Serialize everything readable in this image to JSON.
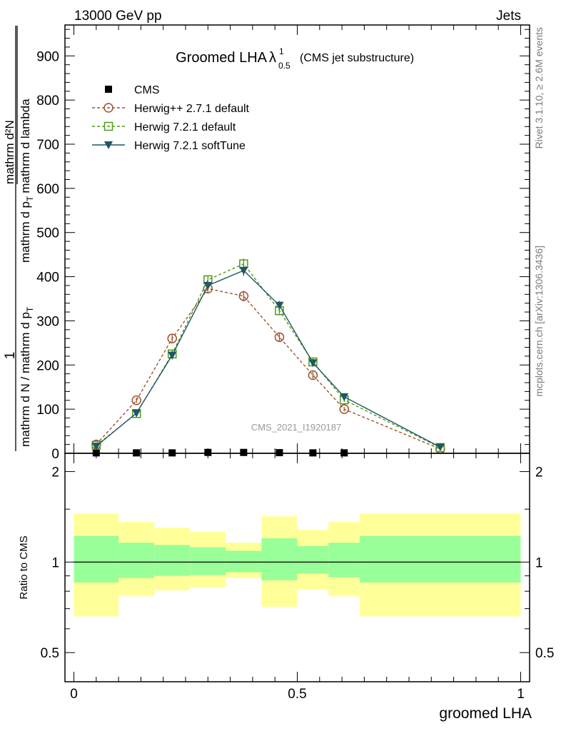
{
  "header": {
    "left": "13000 GeV pp",
    "right": "Jets",
    "title_main": "Groomed LHA",
    "title_lambda": "λ",
    "title_sup": "1",
    "title_sub": "0.5",
    "title_note": "(CMS jet substructure)",
    "watermark": "CMS_2021_I1920187",
    "side_rivet": "Rivet 3.1.10, ≥ 2.6M events",
    "side_mcplots": "mcplots.cern.ch [arXiv:1306.3436]"
  },
  "colors": {
    "herwigpp": "#a0522d",
    "herwig721": "#4f9a1a",
    "softtune": "#1f5668",
    "band_outer": "#ffff99",
    "band_inner": "#99ff99"
  },
  "chart_data": [
    {
      "type": "line",
      "name": "main",
      "ylabel": {
        "num": "1",
        "den": "mathrm d N / mathrm d p_T",
        "den_main": "mathrm d N / mathrm d p",
        "den_sub": "T",
        "rhs_num": "mathrm d²N",
        "rhs_den_pre": "mathrm d p",
        "rhs_den_sub": "T",
        "rhs_den_post": "mathrm d lambda"
      },
      "xlim": [
        -0.02,
        1.02
      ],
      "ylim": [
        0,
        970
      ],
      "yticks": [
        0,
        100,
        200,
        300,
        400,
        500,
        600,
        700,
        800,
        900
      ],
      "legend_position": "top-left",
      "series": [
        {
          "name": "CMS",
          "x": [
            0.05,
            0.14,
            0.22,
            0.3,
            0.38,
            0.46,
            0.535,
            0.605
          ],
          "y": [
            1,
            1,
            1,
            2,
            2,
            1.5,
            1,
            1
          ]
        },
        {
          "name": "Herwig++ 2.7.1 default",
          "x": [
            0.05,
            0.14,
            0.22,
            0.3,
            0.38,
            0.46,
            0.535,
            0.605,
            0.82
          ],
          "y": [
            20,
            120,
            260,
            373,
            356,
            263,
            177,
            100,
            10
          ],
          "err": [
            3,
            6,
            8,
            10,
            12,
            10,
            8,
            5,
            2
          ]
        },
        {
          "name": "Herwig 7.2.1 default",
          "x": [
            0.05,
            0.14,
            0.22,
            0.3,
            0.38,
            0.46,
            0.535,
            0.605,
            0.82
          ],
          "y": [
            18,
            90,
            225,
            393,
            429,
            323,
            207,
            121,
            13
          ],
          "err": [
            3,
            6,
            9,
            10,
            12,
            10,
            8,
            5,
            2
          ]
        },
        {
          "name": "Herwig 7.2.1 softTune",
          "x": [
            0.05,
            0.14,
            0.22,
            0.3,
            0.38,
            0.46,
            0.535,
            0.605,
            0.82
          ],
          "y": [
            16,
            91,
            222,
            380,
            414,
            335,
            205,
            128,
            14
          ],
          "err": [
            3,
            6,
            9,
            10,
            12,
            10,
            8,
            5,
            2
          ]
        }
      ]
    },
    {
      "type": "area",
      "name": "ratio",
      "xlabel": "groomed LHA",
      "ylabel": "Ratio to CMS",
      "xlim": [
        -0.02,
        1.02
      ],
      "ylim": [
        0.4,
        2.3
      ],
      "log_y": true,
      "yticks": [
        0.5,
        1,
        2
      ],
      "ytick_labels": [
        "0.5",
        "1",
        "2"
      ],
      "xticks": [
        0,
        0.5,
        1
      ],
      "xtick_labels": [
        "0",
        "0.5",
        "1"
      ],
      "reference": 1,
      "bins": [
        {
          "x0": 0.0,
          "x1": 0.1,
          "outer": [
            0.66,
            1.45
          ],
          "inner": [
            0.855,
            1.22
          ]
        },
        {
          "x0": 0.1,
          "x1": 0.18,
          "outer": [
            0.77,
            1.36
          ],
          "inner": [
            0.885,
            1.16
          ]
        },
        {
          "x0": 0.18,
          "x1": 0.26,
          "outer": [
            0.805,
            1.3
          ],
          "inner": [
            0.9,
            1.14
          ]
        },
        {
          "x0": 0.26,
          "x1": 0.34,
          "outer": [
            0.825,
            1.26
          ],
          "inner": [
            0.905,
            1.12
          ]
        },
        {
          "x0": 0.34,
          "x1": 0.42,
          "outer": [
            0.885,
            1.16
          ],
          "inner": [
            0.925,
            1.09
          ]
        },
        {
          "x0": 0.42,
          "x1": 0.5,
          "outer": [
            0.71,
            1.42
          ],
          "inner": [
            0.87,
            1.2
          ]
        },
        {
          "x0": 0.5,
          "x1": 0.57,
          "outer": [
            0.81,
            1.28
          ],
          "inner": [
            0.915,
            1.13
          ]
        },
        {
          "x0": 0.57,
          "x1": 0.64,
          "outer": [
            0.77,
            1.36
          ],
          "inner": [
            0.89,
            1.16
          ]
        },
        {
          "x0": 0.64,
          "x1": 1.0,
          "outer": [
            0.66,
            1.45
          ],
          "inner": [
            0.855,
            1.22
          ]
        }
      ]
    }
  ]
}
